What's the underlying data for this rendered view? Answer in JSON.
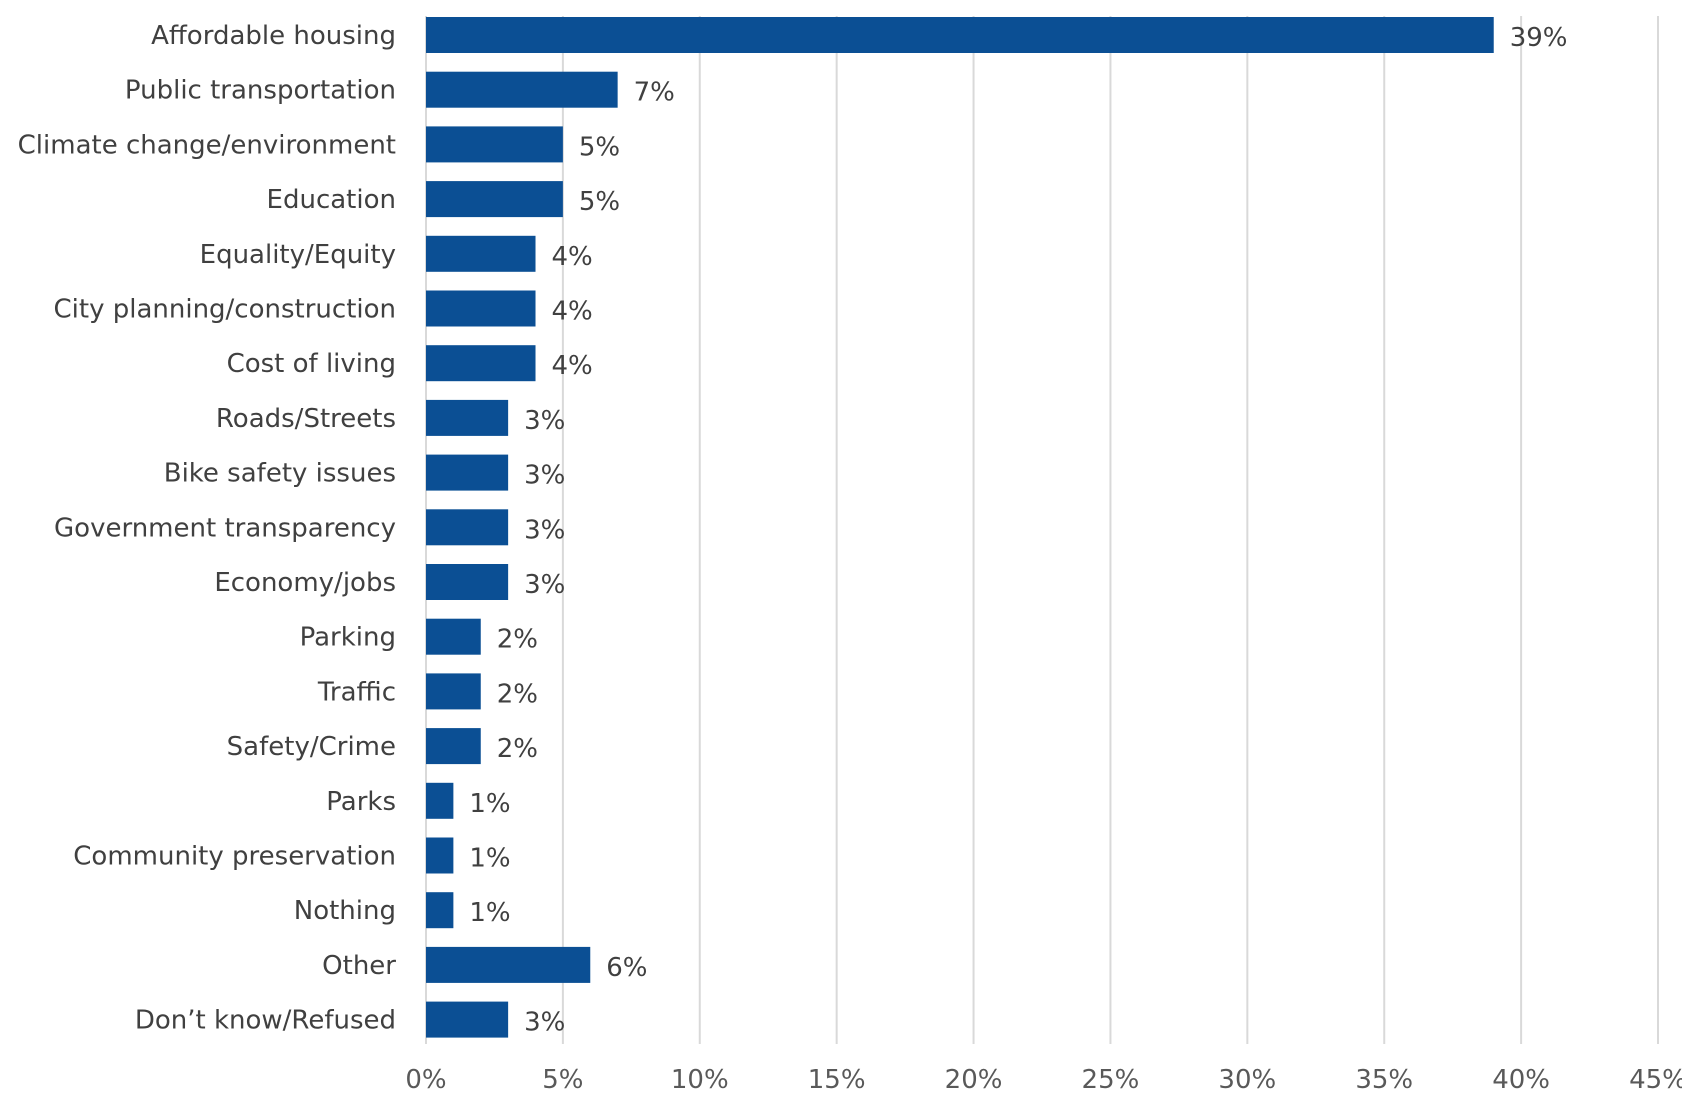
{
  "chart_data": {
    "type": "bar",
    "orientation": "horizontal",
    "title": "",
    "xlabel": "",
    "ylabel": "",
    "categories": [
      "Affordable housing",
      "Public transportation",
      "Climate change/environment",
      "Education",
      "Equality/Equity",
      "City planning/construction",
      "Cost of living",
      "Roads/Streets",
      "Bike safety issues",
      "Government transparency",
      "Economy/jobs",
      "Parking",
      "Traffic",
      "Safety/Crime",
      "Parks",
      "Community preservation",
      "Nothing",
      "Other",
      "Don’t know/Refused"
    ],
    "values": [
      39,
      7,
      5,
      5,
      4,
      4,
      4,
      3,
      3,
      3,
      3,
      2,
      2,
      2,
      1,
      1,
      1,
      6,
      3
    ],
    "data_labels": [
      "39%",
      "7%",
      "5%",
      "5%",
      "4%",
      "4%",
      "4%",
      "3%",
      "3%",
      "3%",
      "3%",
      "2%",
      "2%",
      "2%",
      "1%",
      "1%",
      "1%",
      "6%",
      "3%"
    ],
    "xlim": [
      0,
      45
    ],
    "x_ticks": [
      0,
      5,
      10,
      15,
      20,
      25,
      30,
      35,
      40,
      45
    ],
    "x_tick_labels": [
      "0%",
      "5%",
      "10%",
      "15%",
      "20%",
      "25%",
      "30%",
      "35%",
      "40%",
      "45%"
    ],
    "grid": "vertical",
    "legend": "none",
    "bar_color": "#0b4f94",
    "grid_color": "#d9d9d9",
    "text_color": "#404040"
  }
}
